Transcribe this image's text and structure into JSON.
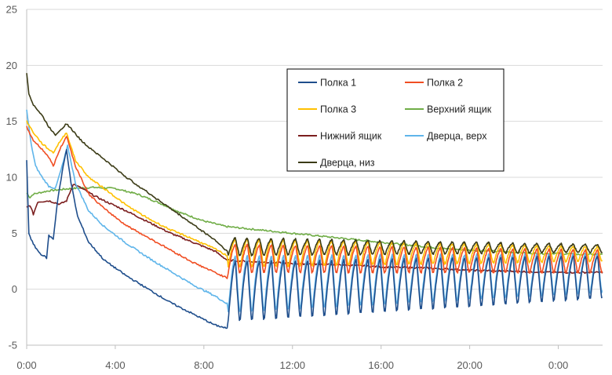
{
  "chart_data": {
    "type": "line",
    "title": "",
    "xlabel": "",
    "ylabel": "",
    "x_unit": "hours",
    "xlim": [
      0,
      26
    ],
    "ylim": [
      -5,
      25
    ],
    "y_ticks": [
      -5,
      0,
      5,
      10,
      15,
      20,
      25
    ],
    "x_ticks": [
      {
        "value": 0,
        "label": "0:00"
      },
      {
        "value": 4,
        "label": "4:00"
      },
      {
        "value": 8,
        "label": "8:00"
      },
      {
        "value": 12,
        "label": "12:00"
      },
      {
        "value": 16,
        "label": "16:00"
      },
      {
        "value": 20,
        "label": "20:00"
      },
      {
        "value": 24,
        "label": "0:00"
      }
    ],
    "grid": "horizontal",
    "legend_position": "center-right",
    "cycles": {
      "start": 9.1,
      "end": 26,
      "count": 31
    },
    "series": [
      {
        "name": "Полка 1",
        "color": "#1F4E8C",
        "points": [
          [
            0,
            11.5
          ],
          [
            0.1,
            5
          ],
          [
            0.3,
            4
          ],
          [
            0.6,
            3.2
          ],
          [
            0.9,
            2.8
          ],
          [
            1.0,
            4.8
          ],
          [
            1.2,
            4.5
          ],
          [
            1.4,
            8
          ],
          [
            1.65,
            11
          ],
          [
            1.8,
            12.5
          ],
          [
            2.0,
            9.5
          ],
          [
            2.3,
            6.5
          ],
          [
            2.8,
            4.2
          ],
          [
            3.5,
            2.6
          ],
          [
            4.5,
            1.2
          ],
          [
            5.5,
            0
          ],
          [
            6.5,
            -1.2
          ],
          [
            7.5,
            -2.2
          ],
          [
            8.5,
            -3.2
          ],
          [
            9.05,
            -3.5
          ]
        ],
        "cycle": {
          "peak_start": 2.5,
          "peak_end": 3.0,
          "trough_start": -2.8,
          "trough_end": -0.8
        }
      },
      {
        "name": "Полка 2",
        "color": "#F04E23",
        "points": [
          [
            0,
            14.5
          ],
          [
            0.3,
            13.3
          ],
          [
            0.7,
            12.5
          ],
          [
            1.0,
            11.8
          ],
          [
            1.2,
            11
          ],
          [
            1.5,
            12.5
          ],
          [
            1.8,
            13.7
          ],
          [
            2.2,
            11
          ],
          [
            2.8,
            8.5
          ],
          [
            3.5,
            7.2
          ],
          [
            4.5,
            5.7
          ],
          [
            5.5,
            4.6
          ],
          [
            6.5,
            3.5
          ],
          [
            7.5,
            2.4
          ],
          [
            8.5,
            1.5
          ],
          [
            9.05,
            1
          ]
        ],
        "cycle": {
          "peak_start": 4.0,
          "peak_end": 3.5,
          "trough_start": 1.5,
          "trough_end": 1.5
        }
      },
      {
        "name": "Полка 3",
        "color": "#FFC000",
        "points": [
          [
            0,
            15
          ],
          [
            0.3,
            14
          ],
          [
            0.7,
            13
          ],
          [
            1.0,
            12.5
          ],
          [
            1.2,
            12.2
          ],
          [
            1.5,
            13.2
          ],
          [
            1.8,
            14
          ],
          [
            2.2,
            11.5
          ],
          [
            2.8,
            10
          ],
          [
            3.5,
            9
          ],
          [
            4.5,
            7.5
          ],
          [
            5.5,
            6.3
          ],
          [
            6.5,
            5.3
          ],
          [
            7.5,
            4.5
          ],
          [
            8.5,
            3.6
          ],
          [
            9.05,
            3
          ]
        ],
        "cycle": {
          "peak_start": 4.5,
          "peak_end": 3.8,
          "trough_start": 2.0,
          "trough_end": 2.5
        }
      },
      {
        "name": "Верхний ящик",
        "color": "#70AD47",
        "points": [
          [
            0,
            8.6
          ],
          [
            0.15,
            8.2
          ],
          [
            0.3,
            8.5
          ],
          [
            1,
            8.8
          ],
          [
            2,
            9
          ],
          [
            3,
            9.1
          ],
          [
            4,
            9
          ],
          [
            5,
            8.5
          ],
          [
            6,
            7.7
          ],
          [
            7,
            6.8
          ],
          [
            8,
            6.1
          ],
          [
            9,
            5.6
          ],
          [
            10,
            5.4
          ],
          [
            11,
            5.2
          ],
          [
            12,
            5
          ],
          [
            13,
            4.8
          ],
          [
            14,
            4.6
          ],
          [
            15,
            4.4
          ],
          [
            16,
            4.2
          ],
          [
            17,
            4.0
          ],
          [
            18,
            3.8
          ],
          [
            19,
            3.6
          ],
          [
            20,
            3.5
          ],
          [
            21,
            3.4
          ],
          [
            22,
            3.3
          ],
          [
            23,
            3.2
          ],
          [
            24,
            3.2
          ],
          [
            25,
            3.1
          ],
          [
            26,
            3.1
          ]
        ]
      },
      {
        "name": "Нижний ящик",
        "color": "#7B1E1E",
        "points": [
          [
            0,
            7.3
          ],
          [
            0.15,
            7.5
          ],
          [
            0.3,
            6.7
          ],
          [
            0.5,
            7.8
          ],
          [
            1.0,
            7.9
          ],
          [
            1.5,
            7.6
          ],
          [
            1.8,
            7.9
          ],
          [
            2.1,
            9.4
          ],
          [
            2.5,
            9
          ],
          [
            3.0,
            8.4
          ],
          [
            3.5,
            7.9
          ],
          [
            4.5,
            7.0
          ],
          [
            5.5,
            6.0
          ],
          [
            6.5,
            5.0
          ],
          [
            7.5,
            4.2
          ],
          [
            8.5,
            3.4
          ],
          [
            9.05,
            2.6
          ],
          [
            10,
            2.5
          ],
          [
            12,
            2.3
          ],
          [
            14,
            2.2
          ],
          [
            16,
            2.0
          ],
          [
            18,
            1.9
          ],
          [
            20,
            1.7
          ],
          [
            22,
            1.6
          ],
          [
            24,
            1.5
          ],
          [
            26,
            1.5
          ]
        ]
      },
      {
        "name": "Дверца, верх",
        "color": "#5FB5EA",
        "points": [
          [
            0,
            16
          ],
          [
            0.2,
            13
          ],
          [
            0.4,
            11
          ],
          [
            0.7,
            10
          ],
          [
            1.0,
            9.2
          ],
          [
            1.3,
            9
          ],
          [
            1.6,
            11
          ],
          [
            1.85,
            12.8
          ],
          [
            2.2,
            9.5
          ],
          [
            2.8,
            7
          ],
          [
            3.5,
            5.6
          ],
          [
            4.5,
            4.1
          ],
          [
            5.5,
            2.8
          ],
          [
            6.5,
            1.6
          ],
          [
            7.5,
            0.4
          ],
          [
            8.5,
            -0.6
          ],
          [
            9.05,
            -1.3
          ]
        ],
        "cycle": {
          "peak_start": 3.0,
          "peak_end": 3.2,
          "trough_start": -2.0,
          "trough_end": -0.3
        }
      },
      {
        "name": "Дверца, низ",
        "color": "#3B3B16",
        "points": [
          [
            0,
            19.3
          ],
          [
            0.1,
            17.5
          ],
          [
            0.3,
            16.5
          ],
          [
            0.7,
            15.5
          ],
          [
            1.0,
            14.5
          ],
          [
            1.3,
            13.8
          ],
          [
            1.5,
            14.2
          ],
          [
            1.8,
            14.8
          ],
          [
            2.5,
            13.2
          ],
          [
            3.5,
            11.6
          ],
          [
            4.5,
            10
          ],
          [
            5.5,
            8.6
          ],
          [
            6.5,
            7.2
          ],
          [
            7.5,
            5.8
          ],
          [
            8.5,
            4.4
          ],
          [
            9.05,
            3.4
          ]
        ],
        "cycle": {
          "peak_start": 4.6,
          "peak_end": 4.0,
          "trough_start": 3.0,
          "trough_end": 3.3
        }
      }
    ]
  }
}
